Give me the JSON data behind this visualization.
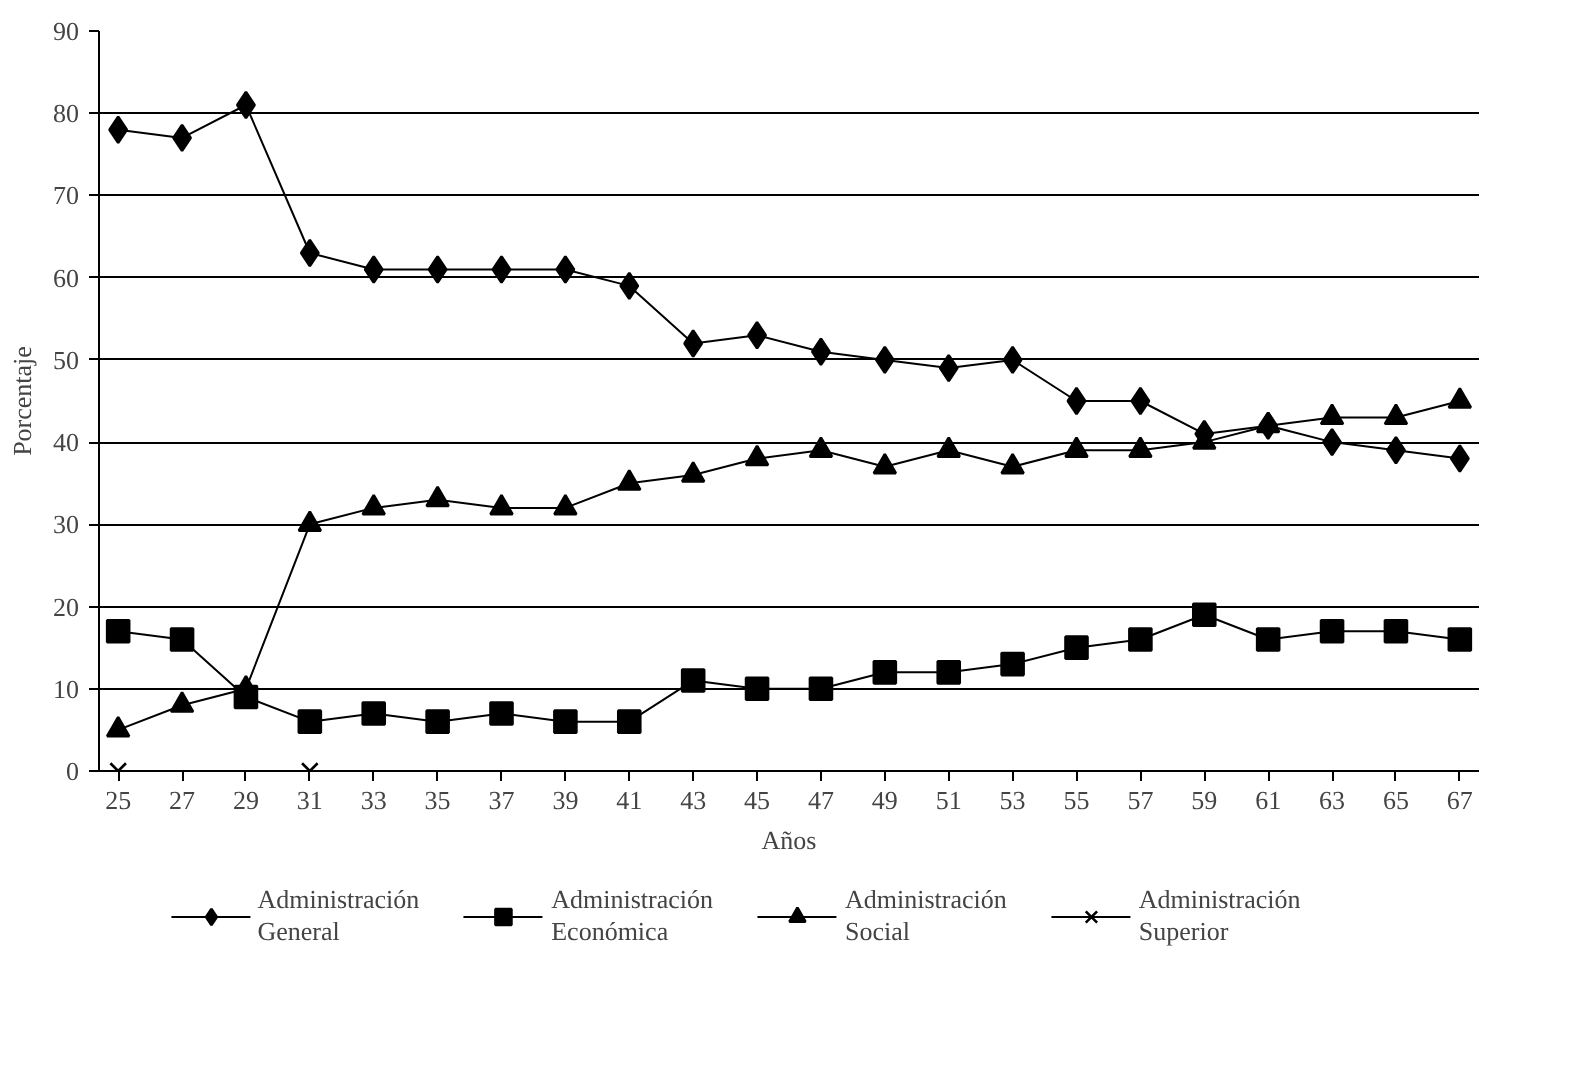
{
  "chart_data": {
    "type": "line",
    "xlabel": "Años",
    "ylabel": "Porcentaje",
    "categories": [
      "25",
      "27",
      "29",
      "31",
      "33",
      "35",
      "37",
      "39",
      "41",
      "43",
      "45",
      "47",
      "49",
      "51",
      "53",
      "55",
      "57",
      "59",
      "61",
      "63",
      "65",
      "67"
    ],
    "ylim": [
      0,
      90
    ],
    "yticks": [
      0,
      10,
      20,
      30,
      40,
      50,
      60,
      70,
      80,
      90
    ],
    "grid": "y",
    "legend": "bottom",
    "line_style": "solid",
    "series": [
      {
        "name": "Administración General",
        "color": "#000000",
        "marker": "diamond",
        "values": [
          78,
          77,
          81,
          63,
          61,
          61,
          61,
          61,
          59,
          52,
          53,
          51,
          50,
          49,
          50,
          45,
          45,
          41,
          42,
          40,
          39,
          38
        ]
      },
      {
        "name": "Administración Económica",
        "color": "#000000",
        "marker": "square",
        "values": [
          17,
          16,
          9,
          6,
          7,
          6,
          7,
          6,
          6,
          11,
          10,
          10,
          12,
          12,
          13,
          15,
          16,
          19,
          16,
          17,
          17,
          16
        ]
      },
      {
        "name": "Administración Social",
        "color": "#000000",
        "marker": "triangle",
        "values": [
          5,
          8,
          10,
          30,
          32,
          33,
          32,
          32,
          35,
          36,
          38,
          39,
          37,
          39,
          37,
          39,
          39,
          40,
          42,
          43,
          43,
          45
        ]
      },
      {
        "name": "Administración Superior",
        "color": "#000000",
        "marker": "cross",
        "values": [
          0,
          null,
          null,
          0,
          null,
          null,
          null,
          null,
          null,
          null,
          null,
          null,
          null,
          null,
          null,
          null,
          null,
          null,
          null,
          null,
          null,
          null
        ]
      }
    ]
  }
}
